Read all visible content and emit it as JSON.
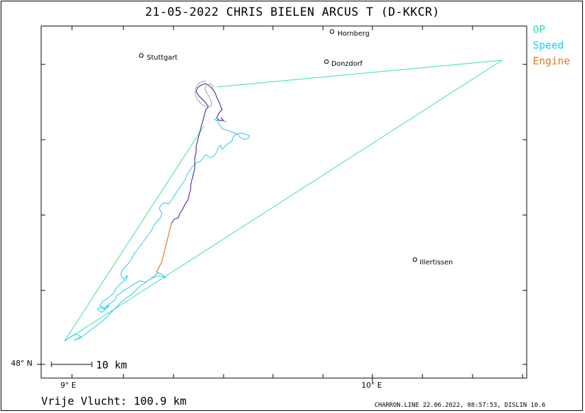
{
  "title": "21-05-2022   CHRIS BIELEN    ARCUS T (D-KKCR)",
  "legend": {
    "op": {
      "label": "OP",
      "color": "#33e0a0"
    },
    "speed": {
      "label": "Speed",
      "color": "#22c8f0"
    },
    "engine": {
      "label": "Engine",
      "color": "#e07820"
    }
  },
  "axes": {
    "lat_label": "48° N",
    "lon_labels": [
      "9° E",
      "10° E"
    ]
  },
  "places": [
    {
      "name": "Stuttgart"
    },
    {
      "name": "Hornberg"
    },
    {
      "name": "Donzdorf"
    },
    {
      "name": "Illertissen"
    }
  ],
  "scale": {
    "label": "10 km"
  },
  "distance": "Vrije Vlucht:  100.9 km",
  "footer": "CHARRON.LINE 22.06.2022, 08:57:53, DISLIN 10.6",
  "colors": {
    "track_gray": "#a0a0a0",
    "track_purple": "#3a0a9a",
    "track_cyan": "#22c8f0",
    "track_orange": "#e07820",
    "op_line": "#33e0a0"
  }
}
